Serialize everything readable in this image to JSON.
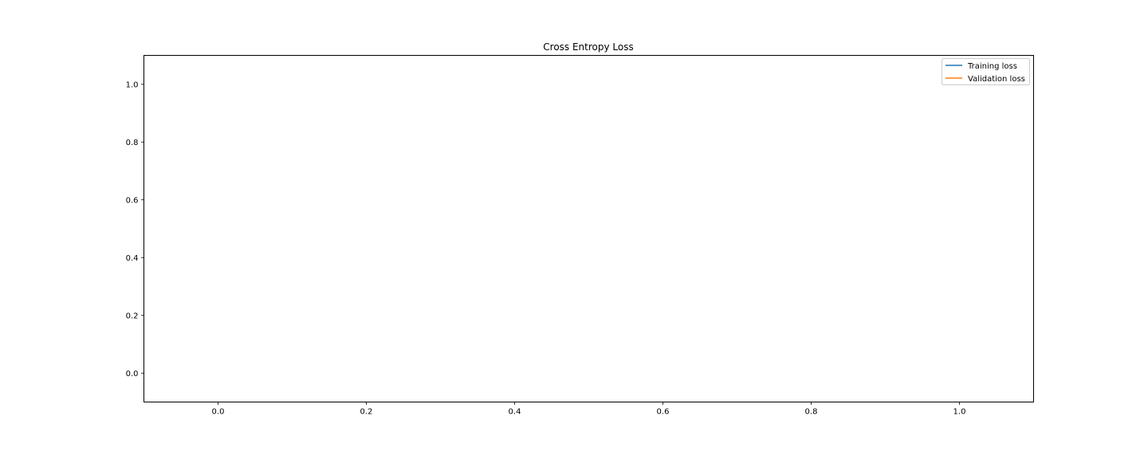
{
  "chart_data": {
    "type": "line",
    "title": "Cross Entropy Loss",
    "xlabel": "",
    "ylabel": "",
    "xlim": [
      -0.1,
      1.1
    ],
    "ylim": [
      -0.1,
      1.1
    ],
    "xticks": [
      0.0,
      0.2,
      0.4,
      0.6,
      0.8,
      1.0
    ],
    "xtick_labels": [
      "0.0",
      "0.2",
      "0.4",
      "0.6",
      "0.8",
      "1.0"
    ],
    "yticks": [
      0.0,
      0.2,
      0.4,
      0.6,
      0.8,
      1.0
    ],
    "ytick_labels": [
      "0.0",
      "0.2",
      "0.4",
      "0.6",
      "0.8",
      "1.0"
    ],
    "grid": false,
    "legend": {
      "position": "top-right"
    },
    "series": [
      {
        "name": "Training loss",
        "color": "#1f77b4",
        "x": [],
        "y": []
      },
      {
        "name": "Validation loss",
        "color": "#ff7f0e",
        "x": [],
        "y": []
      }
    ]
  }
}
